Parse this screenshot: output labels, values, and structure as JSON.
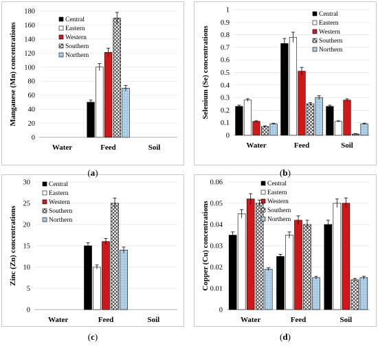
{
  "legend_series": [
    "Central",
    "Eastern",
    "Western",
    "Southern",
    "Northern"
  ],
  "colors": {
    "Central": "#000000",
    "Eastern": "#ffffff",
    "Western": "#d01818",
    "Southern": "#9a9a9a",
    "Northern": "#a9cde6",
    "frame": "#c8c8c8",
    "grid": "#e4e4e4"
  },
  "chart_data": [
    {
      "id": "a",
      "type": "bar",
      "sublabel": "a",
      "ylabel": "Manganese (Mn) concentrations",
      "categories": [
        "Water",
        "Feed",
        "Soil"
      ],
      "ylim": [
        0,
        180
      ],
      "yticks": [
        "0",
        "20",
        "40",
        "60",
        "80",
        "100",
        "120",
        "140",
        "160",
        "180"
      ],
      "ytick_values": [
        0,
        20,
        40,
        60,
        80,
        100,
        120,
        140,
        160,
        180
      ],
      "series": [
        {
          "name": "Central",
          "values": [
            null,
            50,
            null
          ],
          "errors": [
            null,
            3,
            null
          ]
        },
        {
          "name": "Eastern",
          "values": [
            null,
            100,
            null
          ],
          "errors": [
            null,
            5,
            null
          ]
        },
        {
          "name": "Western",
          "values": [
            null,
            121,
            null
          ],
          "errors": [
            null,
            6,
            null
          ]
        },
        {
          "name": "Southern",
          "values": [
            null,
            170,
            null
          ],
          "errors": [
            null,
            8,
            null
          ]
        },
        {
          "name": "Northern",
          "values": [
            null,
            70,
            null
          ],
          "errors": [
            null,
            4,
            null
          ]
        }
      ],
      "legend_position": "top-center"
    },
    {
      "id": "b",
      "type": "bar",
      "sublabel": "b",
      "ylabel": "Selenium (Se) concentrations",
      "categories": [
        "Water",
        "Feed",
        "Soil"
      ],
      "ylim": [
        0,
        1
      ],
      "yticks": [
        "0",
        "0.1",
        "0.2",
        "0.3",
        "0.4",
        "0.5",
        "0.6",
        "0.7",
        "0.8",
        "0.9",
        "1"
      ],
      "ytick_values": [
        0,
        0.1,
        0.2,
        0.3,
        0.4,
        0.5,
        0.6,
        0.7,
        0.8,
        0.9,
        1
      ],
      "series": [
        {
          "name": "Central",
          "values": [
            0.23,
            0.73,
            0.23
          ],
          "errors": [
            0.01,
            0.04,
            0.01
          ]
        },
        {
          "name": "Eastern",
          "values": [
            0.28,
            0.78,
            0.11
          ],
          "errors": [
            0.01,
            0.04,
            0.005
          ]
        },
        {
          "name": "Western",
          "values": [
            0.11,
            0.51,
            0.28
          ],
          "errors": [
            0.005,
            0.03,
            0.01
          ]
        },
        {
          "name": "Southern",
          "values": [
            0.07,
            0.25,
            0.01
          ],
          "errors": [
            0.005,
            0.01,
            0.003
          ]
        },
        {
          "name": "Northern",
          "values": [
            0.09,
            0.3,
            0.09
          ],
          "errors": [
            0.005,
            0.015,
            0.005
          ]
        }
      ],
      "legend_position": "top-right"
    },
    {
      "id": "c",
      "type": "bar",
      "sublabel": "c",
      "ylabel": "Zinc (Zn) concentrations",
      "categories": [
        "Water",
        "Feed",
        "Soil"
      ],
      "ylim": [
        0,
        30
      ],
      "yticks": [
        "0",
        "5",
        "10",
        "15",
        "20",
        "25",
        "30"
      ],
      "ytick_values": [
        0,
        5,
        10,
        15,
        20,
        25,
        30
      ],
      "series": [
        {
          "name": "Central",
          "values": [
            null,
            15,
            null
          ],
          "errors": [
            null,
            0.7,
            null
          ]
        },
        {
          "name": "Eastern",
          "values": [
            null,
            10,
            null
          ],
          "errors": [
            null,
            0.5,
            null
          ]
        },
        {
          "name": "Western",
          "values": [
            null,
            16,
            null
          ],
          "errors": [
            null,
            0.7,
            null
          ]
        },
        {
          "name": "Southern",
          "values": [
            null,
            25,
            null
          ],
          "errors": [
            null,
            1.2,
            null
          ]
        },
        {
          "name": "Northern",
          "values": [
            null,
            14,
            null
          ],
          "errors": [
            null,
            0.7,
            null
          ]
        }
      ],
      "legend_position": "top-left"
    },
    {
      "id": "d",
      "type": "bar",
      "sublabel": "d",
      "ylabel": "Copper (Cu) concentrations",
      "categories": [
        "Water",
        "Feed",
        "Soil"
      ],
      "ylim": [
        0,
        0.06
      ],
      "yticks": [
        "0",
        "0.01",
        "0.02",
        "0.03",
        "0.04",
        "0.05",
        "0.06"
      ],
      "ytick_values": [
        0,
        0.01,
        0.02,
        0.03,
        0.04,
        0.05,
        0.06
      ],
      "series": [
        {
          "name": "Central",
          "values": [
            0.035,
            0.025,
            0.04
          ],
          "errors": [
            0.0015,
            0.001,
            0.002
          ]
        },
        {
          "name": "Eastern",
          "values": [
            0.045,
            0.035,
            0.05
          ],
          "errors": [
            0.002,
            0.0015,
            0.002
          ]
        },
        {
          "name": "Western",
          "values": [
            0.052,
            0.042,
            0.05
          ],
          "errors": [
            0.0025,
            0.002,
            0.0025
          ]
        },
        {
          "name": "Southern",
          "values": [
            0.05,
            0.04,
            0.014
          ],
          "errors": [
            0.0015,
            0.002,
            0.0007
          ]
        },
        {
          "name": "Northern",
          "values": [
            0.019,
            0.015,
            0.015
          ],
          "errors": [
            0.0007,
            0.0007,
            0.0007
          ]
        }
      ],
      "legend_position": "top-center"
    }
  ]
}
